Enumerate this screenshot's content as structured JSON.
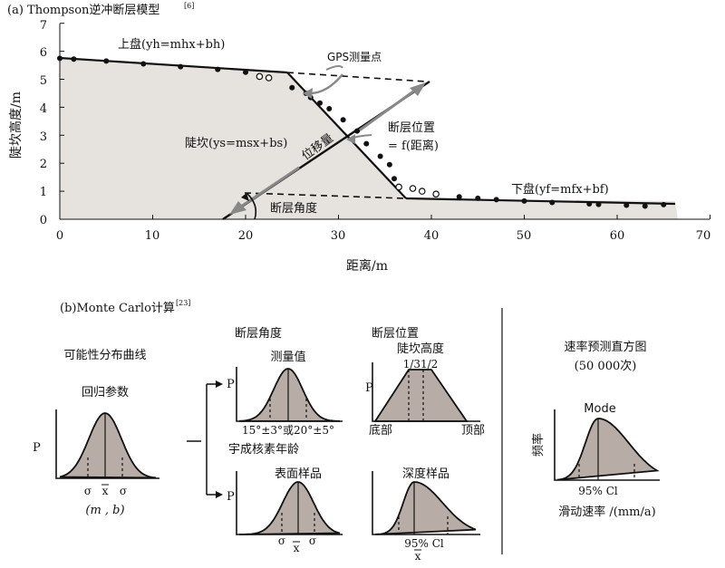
{
  "panel_a": {
    "title": "(a) Thompson逆冲断层模型",
    "title_ref": "[6]",
    "ylabel": "陡坎高度/m",
    "xlabel": "距离/m",
    "x_ticks": [
      "0",
      "10",
      "20",
      "30",
      "40",
      "50",
      "60",
      "70"
    ],
    "y_ticks": [
      "0",
      "1",
      "2",
      "3",
      "4",
      "5",
      "6",
      "7"
    ],
    "label_upper_plate": "上盘(yh=mhx+bh)",
    "label_gps": "GPS测量点",
    "label_fault_position_1": "断层位置",
    "label_fault_position_2": "= f(距离)",
    "label_scarp": "陡坎(ys=msx+bs)",
    "label_displacement": "位移量",
    "label_lower_plate": "下盘(yf=mfx+bf)",
    "label_fault_angle": "断层角度"
  },
  "panel_b": {
    "title": "(b)Monte Carlo计算",
    "title_ref": "[23]",
    "prob_dist": "可能性分布曲线",
    "regression": "回归参数",
    "p_label": "P",
    "sigma": "σ",
    "xbar": "x",
    "mb": "(m , b)",
    "fault_angle": "断层角度",
    "measured": "测量值",
    "angle_range": "15°±3°或20°±5°",
    "fault_position": "断层位置",
    "scarp_height": "陡坎高度",
    "fractions": "1/31/2",
    "bottom": "底部",
    "top": "顶部",
    "cosmo_age": "宇成核素年龄",
    "surface_sample": "表面样品",
    "depth_sample": "深度样品",
    "ci": "95%   Cl",
    "rate_hist_1": "速率预测直方图",
    "rate_hist_2": "(50 000次)",
    "mode": "Mode",
    "freq": "频率",
    "slip_rate": "滑动速率 /(mm/a)"
  },
  "chart_data": {
    "type": "scatter",
    "xlabel": "距离/m",
    "ylabel": "陡坎高度/m",
    "xlim": [
      0,
      70
    ],
    "ylim": [
      0,
      7
    ],
    "filled_points": [
      [
        0,
        5.75
      ],
      [
        1.5,
        5.72
      ],
      [
        5,
        5.65
      ],
      [
        9,
        5.55
      ],
      [
        13,
        5.45
      ],
      [
        17,
        5.35
      ],
      [
        20,
        5.25
      ],
      [
        25,
        4.7
      ],
      [
        26.5,
        4.5
      ],
      [
        27,
        4.35
      ],
      [
        28,
        4.15
      ],
      [
        29,
        3.95
      ],
      [
        30.5,
        3.55
      ],
      [
        32,
        3.15
      ],
      [
        33,
        2.7
      ],
      [
        34.5,
        2.25
      ],
      [
        35.5,
        1.95
      ],
      [
        36,
        1.45
      ],
      [
        43,
        0.8
      ],
      [
        45,
        0.75
      ],
      [
        47,
        0.7
      ],
      [
        50,
        0.65
      ],
      [
        53,
        0.6
      ],
      [
        57,
        0.55
      ],
      [
        58,
        0.53
      ],
      [
        61,
        0.5
      ],
      [
        63,
        0.47
      ],
      [
        65,
        0.52
      ]
    ],
    "open_points": [
      [
        21.5,
        5.1
      ],
      [
        22.5,
        5.05
      ],
      [
        36.5,
        1.15
      ],
      [
        38,
        1.1
      ],
      [
        39,
        1.0
      ],
      [
        40.5,
        0.9
      ]
    ]
  }
}
